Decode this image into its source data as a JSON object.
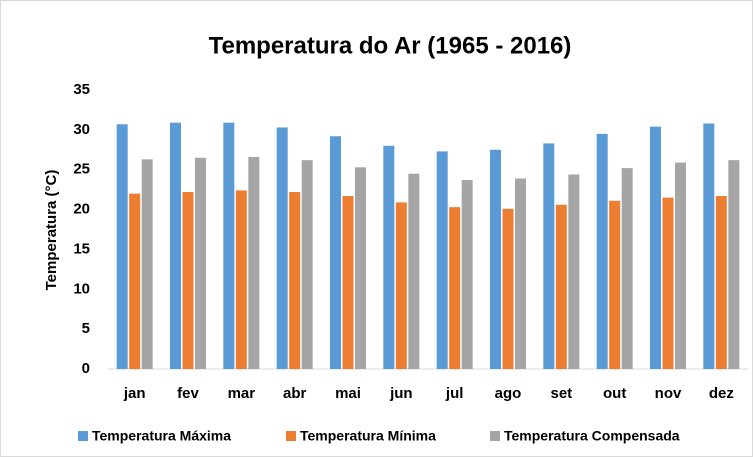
{
  "chart_data": {
    "type": "bar",
    "title": "Temperatura do Ar (1965 - 2016)",
    "y_label": "Temperatura (°C)",
    "categories": [
      "jan",
      "fev",
      "mar",
      "abr",
      "mai",
      "jun",
      "jul",
      "ago",
      "set",
      "out",
      "nov",
      "dez"
    ],
    "series": [
      {
        "name": "Temperatura Máxima",
        "color": "#5b9bd5",
        "values": [
          30.7,
          30.9,
          30.9,
          30.3,
          29.2,
          28.0,
          27.3,
          27.5,
          28.3,
          29.5,
          30.4,
          30.8
        ]
      },
      {
        "name": "Temperatura Mínima",
        "color": "#ed7d31",
        "values": [
          22.0,
          22.2,
          22.4,
          22.2,
          21.7,
          20.9,
          20.3,
          20.1,
          20.6,
          21.1,
          21.5,
          21.7
        ]
      },
      {
        "name": "Temperatura Compensada",
        "color": "#a5a5a5",
        "values": [
          26.3,
          26.5,
          26.6,
          26.2,
          25.3,
          24.5,
          23.7,
          23.9,
          24.4,
          25.2,
          25.9,
          26.2
        ]
      }
    ],
    "ylim": [
      0,
      35
    ],
    "yticks": [
      0,
      5,
      10,
      15,
      20,
      25,
      30,
      35
    ],
    "grid": false,
    "legend": "bottom"
  }
}
